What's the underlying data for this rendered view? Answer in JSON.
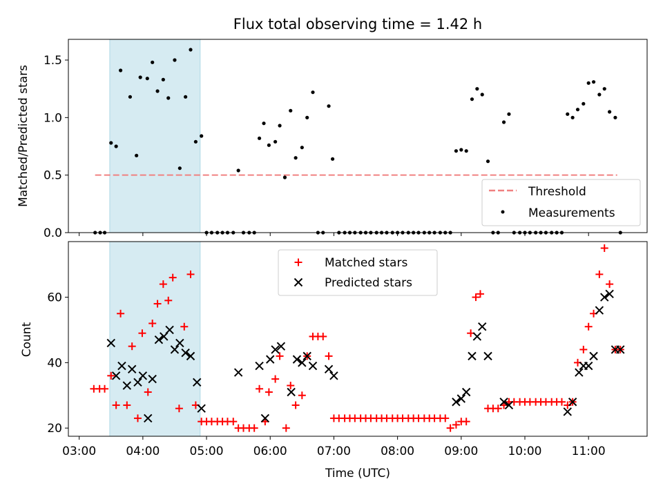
{
  "title": "Flux total observing time = 1.42 h",
  "colors": {
    "threshold": "#f08080",
    "measurement": "#000000",
    "matched": "#ff0000",
    "predicted": "#000000",
    "span": "#add8e6"
  },
  "chart_data": [
    {
      "type": "scatter",
      "name": "ratio-panel",
      "ylabel": "Matched/Predicted stars",
      "ylim": [
        0,
        1.68
      ],
      "yticks": [
        0.0,
        0.5,
        1.0,
        1.5
      ],
      "ytick_labels": [
        "0.0",
        "0.5",
        "1.0",
        "1.5"
      ],
      "xlim_hours": [
        2.83,
        11.92
      ],
      "shaded_span_hours": [
        3.48,
        4.9
      ],
      "threshold": {
        "label": "Threshold",
        "value": 0.5,
        "x_from_hours": 3.25,
        "x_to_hours": 11.45
      },
      "legend": {
        "position": "lower-right",
        "entries": [
          "Threshold",
          "Measurements"
        ]
      },
      "measurements": {
        "label": "Measurements",
        "x_hours": [
          3.25,
          3.33,
          3.4,
          3.5,
          3.58,
          3.65,
          3.8,
          3.9,
          3.96,
          4.07,
          4.15,
          4.23,
          4.32,
          4.4,
          4.5,
          4.58,
          4.67,
          4.75,
          4.83,
          4.92,
          5.0,
          5.08,
          5.17,
          5.25,
          5.33,
          5.42,
          5.5,
          5.58,
          5.67,
          5.75,
          5.83,
          5.9,
          5.98,
          6.08,
          6.15,
          6.23,
          6.32,
          6.4,
          6.5,
          6.58,
          6.67,
          6.75,
          6.83,
          6.92,
          6.98,
          7.08,
          7.17,
          7.25,
          7.33,
          7.42,
          7.5,
          7.58,
          7.67,
          7.75,
          7.83,
          7.92,
          8.0,
          8.08,
          8.17,
          8.25,
          8.33,
          8.42,
          8.5,
          8.58,
          8.67,
          8.75,
          8.83,
          8.92,
          9.0,
          9.08,
          9.17,
          9.25,
          9.33,
          9.42,
          9.5,
          9.58,
          9.67,
          9.75,
          9.83,
          9.92,
          10.0,
          10.08,
          10.17,
          10.25,
          10.33,
          10.42,
          10.5,
          10.58,
          10.67,
          10.75,
          10.83,
          10.92,
          11.0,
          11.08,
          11.17,
          11.25,
          11.33,
          11.42,
          11.5
        ],
        "y": [
          0.0,
          0.0,
          0.0,
          0.78,
          0.75,
          1.41,
          1.18,
          0.67,
          1.35,
          1.34,
          1.48,
          1.23,
          1.33,
          1.17,
          1.5,
          0.56,
          1.18,
          1.59,
          0.79,
          0.84,
          0.0,
          0.0,
          0.0,
          0.0,
          0.0,
          0.0,
          0.54,
          0.0,
          0.0,
          0.0,
          0.82,
          0.95,
          0.76,
          0.79,
          0.93,
          0.48,
          1.06,
          0.65,
          0.74,
          1.0,
          1.22,
          0.0,
          0.0,
          1.1,
          0.64,
          0.0,
          0.0,
          0.0,
          0.0,
          0.0,
          0.0,
          0.0,
          0.0,
          0.0,
          0.0,
          0.0,
          0.0,
          0.0,
          0.0,
          0.0,
          0.0,
          0.0,
          0.0,
          0.0,
          0.0,
          0.0,
          0.0,
          0.71,
          0.72,
          0.71,
          1.16,
          1.25,
          1.2,
          0.62,
          0.0,
          0.0,
          0.96,
          1.03,
          0.0,
          0.0,
          0.0,
          0.0,
          0.0,
          0.0,
          0.0,
          0.0,
          0.0,
          0.0,
          1.03,
          1.0,
          1.07,
          1.12,
          1.3,
          1.31,
          1.2,
          1.25,
          1.05,
          1.0,
          0.0
        ]
      }
    },
    {
      "type": "scatter",
      "name": "count-panel",
      "xlabel": "Time (UTC)",
      "ylabel": "Count",
      "ylim": [
        17.5,
        77
      ],
      "yticks": [
        20,
        40,
        60
      ],
      "ytick_labels": [
        "20",
        "40",
        "60"
      ],
      "xlim_hours": [
        2.83,
        11.92
      ],
      "xticks_hours": [
        3,
        4,
        5,
        6,
        7,
        8,
        9,
        10,
        11
      ],
      "xtick_labels": [
        "03:00",
        "04:00",
        "05:00",
        "06:00",
        "07:00",
        "08:00",
        "09:00",
        "10:00",
        "11:00"
      ],
      "shaded_span_hours": [
        3.48,
        4.9
      ],
      "legend": {
        "position": "upper-center",
        "entries": [
          "Matched stars",
          "Predicted stars"
        ]
      },
      "matched": {
        "label": "Matched stars",
        "points": [
          [
            3.23,
            32
          ],
          [
            3.32,
            32
          ],
          [
            3.4,
            32
          ],
          [
            3.5,
            36
          ],
          [
            3.58,
            27
          ],
          [
            3.65,
            55
          ],
          [
            3.75,
            27
          ],
          [
            3.83,
            45
          ],
          [
            3.92,
            23
          ],
          [
            3.99,
            49
          ],
          [
            4.08,
            31
          ],
          [
            4.15,
            52
          ],
          [
            4.23,
            58
          ],
          [
            4.32,
            64
          ],
          [
            4.4,
            59
          ],
          [
            4.47,
            66
          ],
          [
            4.57,
            26
          ],
          [
            4.65,
            51
          ],
          [
            4.75,
            67
          ],
          [
            4.83,
            27
          ],
          [
            4.92,
            22
          ],
          [
            5.0,
            22
          ],
          [
            5.08,
            22
          ],
          [
            5.17,
            22
          ],
          [
            5.25,
            22
          ],
          [
            5.33,
            22
          ],
          [
            5.42,
            22
          ],
          [
            5.5,
            20
          ],
          [
            5.58,
            20
          ],
          [
            5.67,
            20
          ],
          [
            5.75,
            20
          ],
          [
            5.83,
            32
          ],
          [
            5.92,
            22
          ],
          [
            5.98,
            31
          ],
          [
            6.08,
            35
          ],
          [
            6.15,
            42
          ],
          [
            6.25,
            20
          ],
          [
            6.32,
            33
          ],
          [
            6.4,
            27
          ],
          [
            6.5,
            30
          ],
          [
            6.58,
            42
          ],
          [
            6.67,
            48
          ],
          [
            6.75,
            48
          ],
          [
            6.83,
            48
          ],
          [
            6.92,
            42
          ],
          [
            7.0,
            23
          ],
          [
            7.08,
            23
          ],
          [
            7.17,
            23
          ],
          [
            7.25,
            23
          ],
          [
            7.33,
            23
          ],
          [
            7.42,
            23
          ],
          [
            7.5,
            23
          ],
          [
            7.58,
            23
          ],
          [
            7.67,
            23
          ],
          [
            7.75,
            23
          ],
          [
            7.83,
            23
          ],
          [
            7.92,
            23
          ],
          [
            8.0,
            23
          ],
          [
            8.08,
            23
          ],
          [
            8.17,
            23
          ],
          [
            8.25,
            23
          ],
          [
            8.33,
            23
          ],
          [
            8.42,
            23
          ],
          [
            8.5,
            23
          ],
          [
            8.58,
            23
          ],
          [
            8.67,
            23
          ],
          [
            8.75,
            23
          ],
          [
            8.83,
            20
          ],
          [
            8.92,
            21
          ],
          [
            9.0,
            22
          ],
          [
            9.08,
            22
          ],
          [
            9.15,
            49
          ],
          [
            9.23,
            60
          ],
          [
            9.3,
            61
          ],
          [
            9.42,
            26
          ],
          [
            9.5,
            26
          ],
          [
            9.58,
            26
          ],
          [
            9.67,
            27
          ],
          [
            9.75,
            28
          ],
          [
            9.83,
            28
          ],
          [
            9.92,
            28
          ],
          [
            10.0,
            28
          ],
          [
            10.08,
            28
          ],
          [
            10.17,
            28
          ],
          [
            10.25,
            28
          ],
          [
            10.33,
            28
          ],
          [
            10.42,
            28
          ],
          [
            10.5,
            28
          ],
          [
            10.58,
            28
          ],
          [
            10.67,
            27
          ],
          [
            10.75,
            28
          ],
          [
            10.83,
            40
          ],
          [
            10.92,
            44
          ],
          [
            11.0,
            51
          ],
          [
            11.08,
            55
          ],
          [
            11.17,
            67
          ],
          [
            11.25,
            75
          ],
          [
            11.33,
            64
          ],
          [
            11.42,
            44
          ],
          [
            11.5,
            44
          ]
        ]
      },
      "predicted": {
        "label": "Predicted stars",
        "points": [
          [
            3.5,
            46
          ],
          [
            3.58,
            36
          ],
          [
            3.67,
            39
          ],
          [
            3.75,
            33
          ],
          [
            3.83,
            38
          ],
          [
            3.92,
            34
          ],
          [
            4.0,
            36
          ],
          [
            4.08,
            23
          ],
          [
            4.15,
            35
          ],
          [
            4.25,
            47
          ],
          [
            4.33,
            48
          ],
          [
            4.42,
            50
          ],
          [
            4.5,
            44
          ],
          [
            4.58,
            46
          ],
          [
            4.67,
            43
          ],
          [
            4.75,
            42
          ],
          [
            4.85,
            34
          ],
          [
            4.92,
            26
          ],
          [
            5.5,
            37
          ],
          [
            5.83,
            39
          ],
          [
            5.92,
            23
          ],
          [
            6.0,
            41
          ],
          [
            6.08,
            44
          ],
          [
            6.17,
            45
          ],
          [
            6.33,
            31
          ],
          [
            6.42,
            41
          ],
          [
            6.5,
            40
          ],
          [
            6.58,
            42
          ],
          [
            6.67,
            39
          ],
          [
            6.92,
            38
          ],
          [
            7.0,
            36
          ],
          [
            8.92,
            28
          ],
          [
            9.0,
            29
          ],
          [
            9.08,
            31
          ],
          [
            9.17,
            42
          ],
          [
            9.25,
            48
          ],
          [
            9.33,
            51
          ],
          [
            9.42,
            42
          ],
          [
            9.67,
            28
          ],
          [
            9.75,
            27
          ],
          [
            10.67,
            25
          ],
          [
            10.75,
            28
          ],
          [
            10.85,
            37
          ],
          [
            10.92,
            39
          ],
          [
            11.0,
            39
          ],
          [
            11.08,
            42
          ],
          [
            11.17,
            56
          ],
          [
            11.25,
            60
          ],
          [
            11.33,
            61
          ],
          [
            11.42,
            44
          ],
          [
            11.5,
            44
          ]
        ]
      }
    }
  ]
}
